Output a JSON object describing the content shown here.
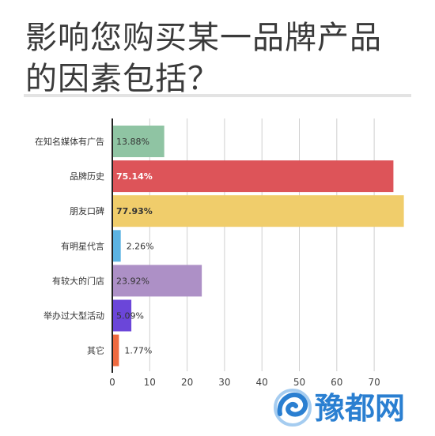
{
  "chart_data": {
    "type": "bar",
    "orientation": "horizontal",
    "title": "影响您购买某一品牌产品的因素包括？",
    "categories": [
      "在知名媒体有广告",
      "品牌历史",
      "朋友口碑",
      "有明星代言",
      "有较大的门店",
      "举办过大型活动",
      "其它"
    ],
    "values": [
      13.88,
      75.14,
      77.93,
      2.26,
      23.92,
      5.09,
      1.77
    ],
    "value_labels": [
      "13.88%",
      "75.14%",
      "77.93%",
      "2.26%",
      "23.92%",
      "5.09%",
      "1.77%"
    ],
    "colors": [
      "#8fc4a3",
      "#dd5459",
      "#f0cd6b",
      "#5cb3e2",
      "#ad90c6",
      "#6b46d9",
      "#ee6a40"
    ],
    "xlim": [
      0,
      80
    ],
    "xticks": [
      0,
      10,
      20,
      30,
      40,
      50,
      60,
      70
    ],
    "grid": true,
    "legend": "none"
  },
  "watermark": {
    "text": "豫都网",
    "color": "#2a7fd1"
  }
}
